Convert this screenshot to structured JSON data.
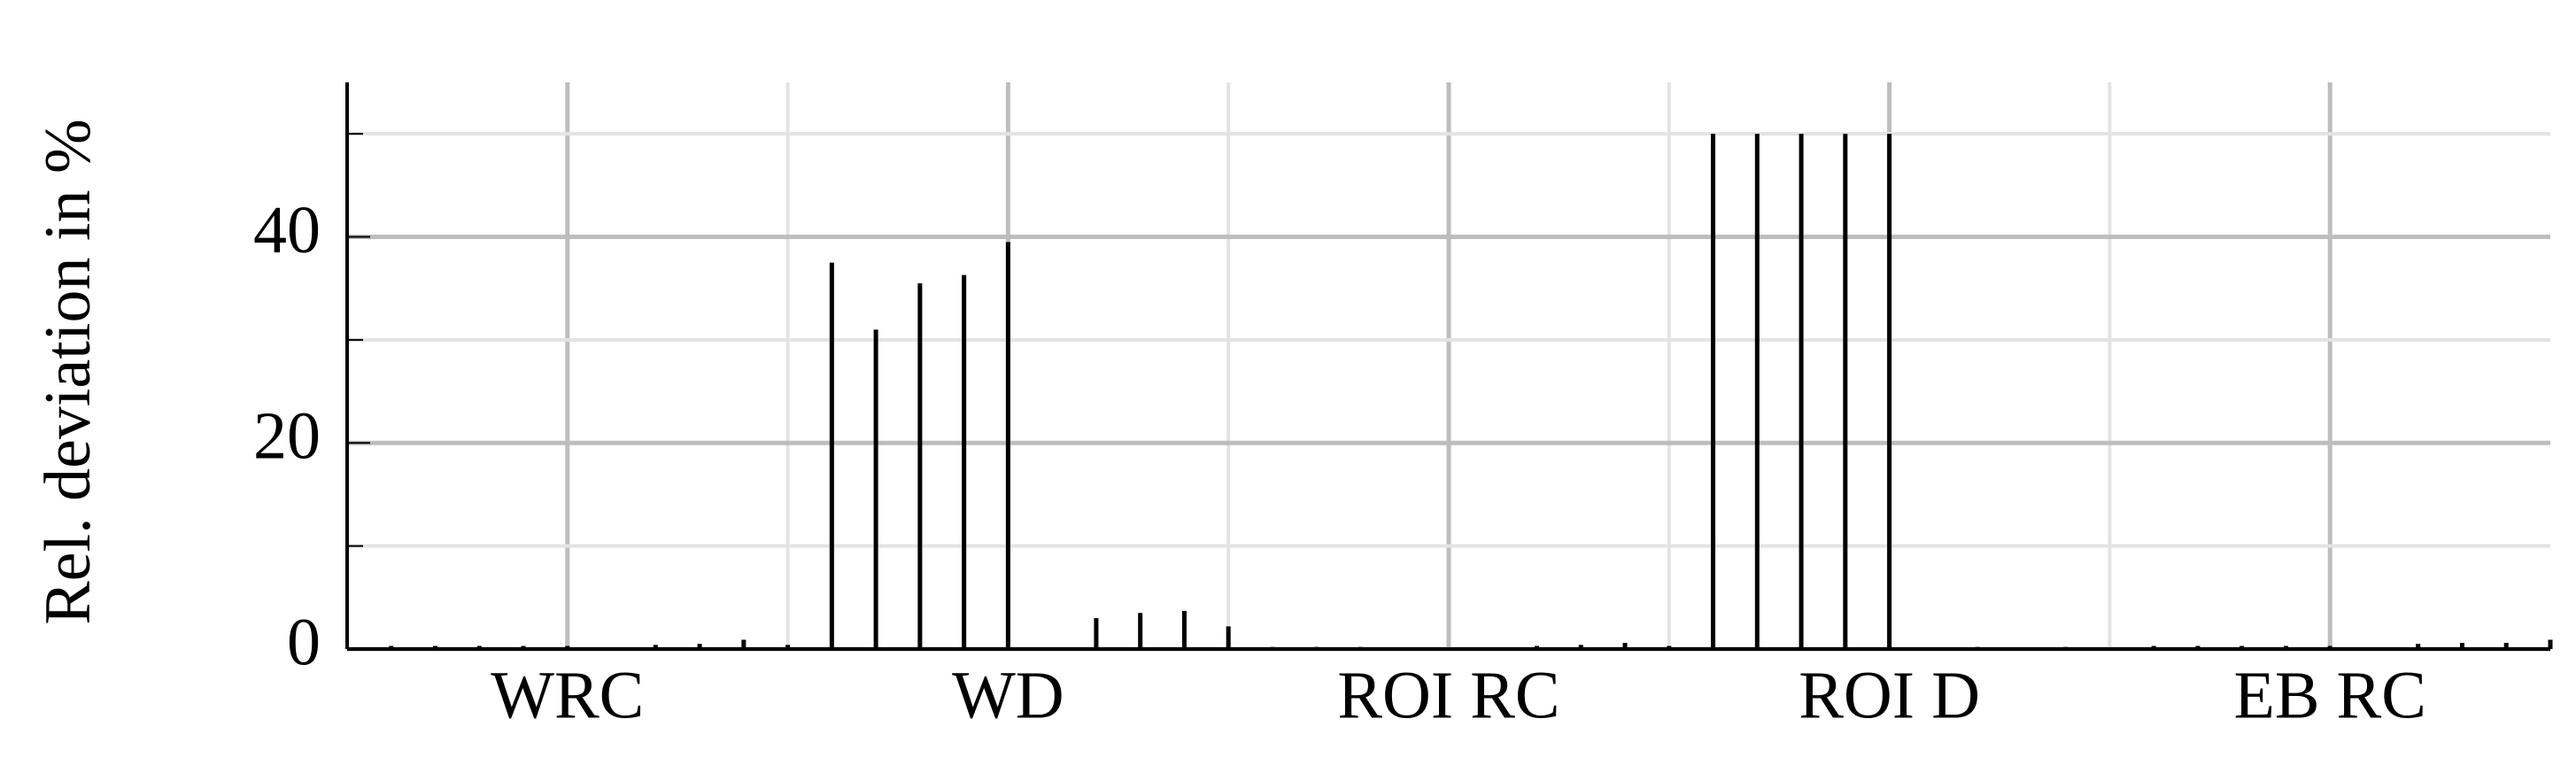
{
  "chart_data": {
    "type": "bar",
    "y_label": "Rel. deviation in %",
    "categories": [
      "WRC",
      "WD",
      "ROI RC",
      "ROI D",
      "EB RC"
    ],
    "series": [
      {
        "color": "#000000",
        "values": [
          0.3,
          37.5,
          0.2,
          50,
          0.3
        ]
      },
      {
        "color": "#000000",
        "values": [
          0.3,
          31,
          0.2,
          50,
          0.3
        ]
      },
      {
        "color": "#000000",
        "values": [
          0.3,
          35.5,
          0.2,
          50,
          0.3
        ]
      },
      {
        "color": "#000000",
        "values": [
          0.3,
          36.3,
          0,
          50,
          0.3
        ]
      },
      {
        "color": "#000000",
        "values": [
          0.3,
          39.5,
          0,
          50,
          0.3
        ]
      },
      {
        "color": "#000000",
        "values": [
          0.4,
          3,
          0.3,
          0.2,
          0.5
        ]
      },
      {
        "color": "#000000",
        "values": [
          0.5,
          3.5,
          0.4,
          0,
          0.6
        ]
      },
      {
        "color": "#000000",
        "values": [
          0.9,
          3.7,
          0.6,
          0.2,
          0.6
        ]
      },
      {
        "color": "#000000",
        "values": [
          0.4,
          2.2,
          0.3,
          0,
          0.9
        ]
      }
    ],
    "ylim": [
      0,
      55
    ],
    "yticks": [
      0,
      20,
      40
    ],
    "minor_yticks": [
      10,
      30,
      50
    ],
    "grid": true
  }
}
